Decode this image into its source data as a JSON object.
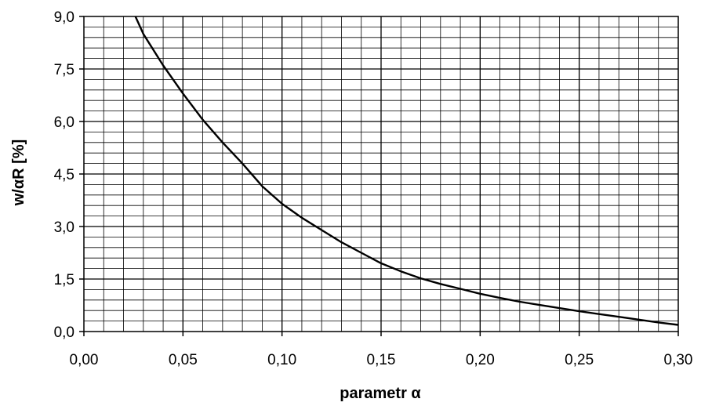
{
  "chart_data": {
    "type": "line",
    "xlabel": "parametr α",
    "ylabel": "w/αR  [%]",
    "xlim": [
      0,
      0.3
    ],
    "ylim": [
      0,
      9
    ],
    "x_ticks": [
      "0,00",
      "0,05",
      "0,10",
      "0,15",
      "0,20",
      "0,25",
      "0,30"
    ],
    "y_ticks": [
      "0,0",
      "1,5",
      "3,0",
      "4,5",
      "6,0",
      "7,5",
      "9,0"
    ],
    "grid": true,
    "minor_grid": {
      "x_step": 0.01,
      "y_step": 0.3
    },
    "series": [
      {
        "color": "#000000",
        "points": [
          [
            0.026,
            9.0
          ],
          [
            0.03,
            8.5
          ],
          [
            0.04,
            7.6
          ],
          [
            0.05,
            6.8
          ],
          [
            0.06,
            6.05
          ],
          [
            0.07,
            5.4
          ],
          [
            0.08,
            4.8
          ],
          [
            0.09,
            4.15
          ],
          [
            0.1,
            3.65
          ],
          [
            0.11,
            3.25
          ],
          [
            0.12,
            2.9
          ],
          [
            0.13,
            2.55
          ],
          [
            0.14,
            2.25
          ],
          [
            0.15,
            1.95
          ],
          [
            0.16,
            1.72
          ],
          [
            0.17,
            1.52
          ],
          [
            0.18,
            1.36
          ],
          [
            0.19,
            1.22
          ],
          [
            0.2,
            1.08
          ],
          [
            0.21,
            0.96
          ],
          [
            0.22,
            0.85
          ],
          [
            0.23,
            0.76
          ],
          [
            0.24,
            0.67
          ],
          [
            0.25,
            0.58
          ],
          [
            0.26,
            0.5
          ],
          [
            0.27,
            0.42
          ],
          [
            0.28,
            0.34
          ],
          [
            0.29,
            0.26
          ],
          [
            0.3,
            0.19
          ]
        ]
      }
    ]
  }
}
